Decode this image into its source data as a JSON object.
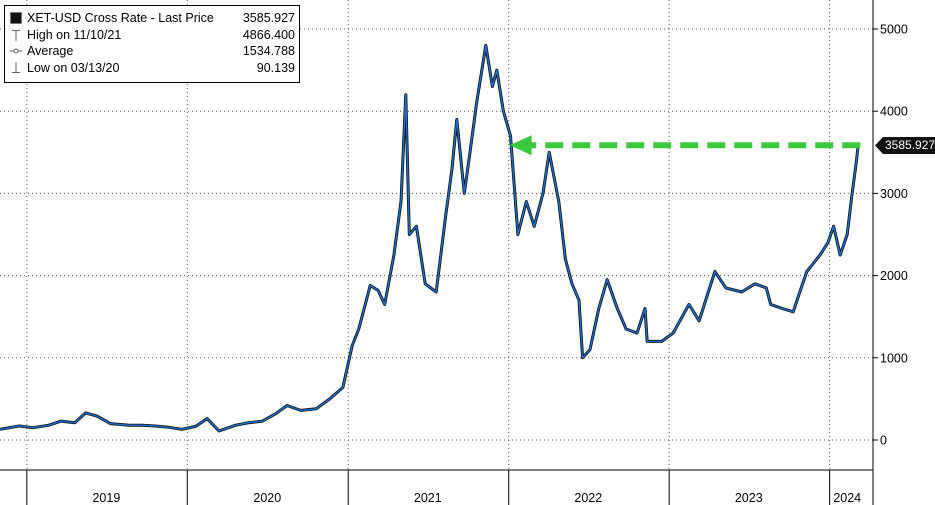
{
  "legend": {
    "title": "XET-USD Cross Rate - Last Price",
    "last_value": "3585.927",
    "high_label": "High on 11/10/21",
    "high_value": "4866.400",
    "average_label": "Average",
    "average_value": "1534.788",
    "low_label": "Low on 03/13/20",
    "low_value": "90.139"
  },
  "last_price_tag": "3585.927",
  "colors": {
    "line": "#1a6fd1",
    "line_dark": "#111111",
    "arrow": "#3cc83c",
    "grid": "#555555"
  },
  "chart_data": {
    "type": "line",
    "title": "XET-USD Cross Rate - Last Price",
    "xlabel": "",
    "ylabel": "",
    "ylim": [
      -350,
      5200
    ],
    "y_ticks": [
      0,
      1000,
      2000,
      3000,
      4000,
      5000
    ],
    "x_tick_labels": [
      "2019",
      "2020",
      "2021",
      "2022",
      "2023",
      "2024"
    ],
    "grid": true,
    "legend_position": "top-left",
    "annotation": "dashed green arrow at last price 3585.927 pointing back to 2021 level",
    "series": [
      {
        "name": "XET-USD Cross Rate - Last Price",
        "points": [
          [
            "2018-11-01",
            130
          ],
          [
            "2018-12-15",
            170
          ],
          [
            "2019-01-15",
            150
          ],
          [
            "2019-02-20",
            180
          ],
          [
            "2019-03-20",
            230
          ],
          [
            "2019-04-20",
            210
          ],
          [
            "2019-05-15",
            330
          ],
          [
            "2019-06-10",
            290
          ],
          [
            "2019-07-10",
            200
          ],
          [
            "2019-08-20",
            180
          ],
          [
            "2019-09-20",
            180
          ],
          [
            "2019-10-20",
            170
          ],
          [
            "2019-11-20",
            155
          ],
          [
            "2019-12-20",
            130
          ],
          [
            "2020-01-20",
            165
          ],
          [
            "2020-02-15",
            260
          ],
          [
            "2020-03-13",
            110
          ],
          [
            "2020-04-20",
            180
          ],
          [
            "2020-05-20",
            210
          ],
          [
            "2020-06-20",
            230
          ],
          [
            "2020-07-20",
            320
          ],
          [
            "2020-08-15",
            420
          ],
          [
            "2020-09-15",
            360
          ],
          [
            "2020-10-20",
            380
          ],
          [
            "2020-11-20",
            500
          ],
          [
            "2020-12-20",
            640
          ],
          [
            "2021-01-10",
            1150
          ],
          [
            "2021-01-25",
            1350
          ],
          [
            "2021-02-20",
            1880
          ],
          [
            "2021-03-10",
            1820
          ],
          [
            "2021-03-25",
            1650
          ],
          [
            "2021-04-15",
            2250
          ],
          [
            "2021-05-01",
            2900
          ],
          [
            "2021-05-12",
            4200
          ],
          [
            "2021-05-20",
            2500
          ],
          [
            "2021-06-05",
            2600
          ],
          [
            "2021-06-25",
            1900
          ],
          [
            "2021-07-20",
            1800
          ],
          [
            "2021-08-10",
            2700
          ],
          [
            "2021-08-25",
            3300
          ],
          [
            "2021-09-05",
            3900
          ],
          [
            "2021-09-22",
            3000
          ],
          [
            "2021-10-05",
            3500
          ],
          [
            "2021-10-20",
            4100
          ],
          [
            "2021-11-10",
            4800
          ],
          [
            "2021-11-25",
            4300
          ],
          [
            "2021-12-05",
            4500
          ],
          [
            "2021-12-20",
            4000
          ],
          [
            "2022-01-05",
            3700
          ],
          [
            "2022-01-22",
            2500
          ],
          [
            "2022-02-10",
            2900
          ],
          [
            "2022-02-28",
            2600
          ],
          [
            "2022-03-20",
            3000
          ],
          [
            "2022-04-03",
            3500
          ],
          [
            "2022-04-25",
            2900
          ],
          [
            "2022-05-10",
            2200
          ],
          [
            "2022-05-25",
            1900
          ],
          [
            "2022-06-10",
            1700
          ],
          [
            "2022-06-18",
            1000
          ],
          [
            "2022-07-05",
            1100
          ],
          [
            "2022-07-25",
            1600
          ],
          [
            "2022-08-13",
            1950
          ],
          [
            "2022-09-05",
            1600
          ],
          [
            "2022-09-25",
            1350
          ],
          [
            "2022-10-20",
            1300
          ],
          [
            "2022-11-07",
            1600
          ],
          [
            "2022-11-12",
            1200
          ],
          [
            "2022-12-15",
            1200
          ],
          [
            "2023-01-10",
            1300
          ],
          [
            "2023-02-15",
            1650
          ],
          [
            "2023-03-10",
            1450
          ],
          [
            "2023-04-15",
            2050
          ],
          [
            "2023-05-10",
            1850
          ],
          [
            "2023-06-15",
            1800
          ],
          [
            "2023-07-15",
            1900
          ],
          [
            "2023-08-10",
            1850
          ],
          [
            "2023-08-20",
            1650
          ],
          [
            "2023-09-15",
            1600
          ],
          [
            "2023-10-10",
            1560
          ],
          [
            "2023-10-25",
            1800
          ],
          [
            "2023-11-10",
            2050
          ],
          [
            "2023-12-10",
            2250
          ],
          [
            "2023-12-28",
            2400
          ],
          [
            "2024-01-10",
            2600
          ],
          [
            "2024-01-25",
            2250
          ],
          [
            "2024-02-10",
            2500
          ],
          [
            "2024-02-20",
            2950
          ],
          [
            "2024-03-01",
            3350
          ],
          [
            "2024-03-06",
            3585.927
          ]
        ]
      }
    ]
  }
}
